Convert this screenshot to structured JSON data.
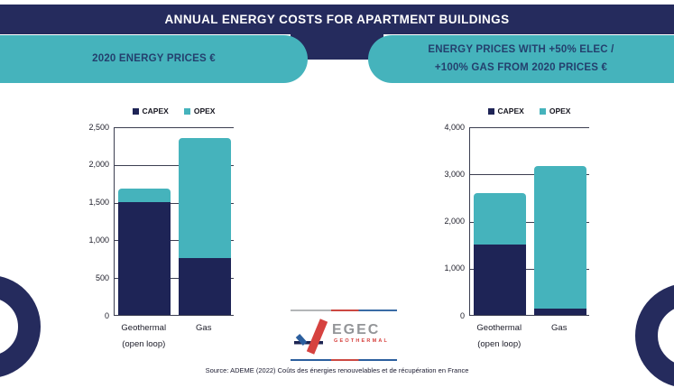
{
  "header": {
    "title": "ANNUAL ENERGY COSTS FOR APARTMENT BUILDINGS"
  },
  "banners": {
    "left": "2020 ENERGY PRICES €",
    "right_line1": "ENERGY PRICES WITH +50% ELEC /",
    "right_line2": "+100% GAS FROM 2020 PRICES €"
  },
  "chart_data": [
    {
      "type": "bar",
      "stacked": true,
      "title": "2020 ENERGY PRICES €",
      "categories": [
        [
          "Geothermal",
          "(open loop)"
        ],
        [
          "Gas"
        ]
      ],
      "series": [
        {
          "name": "CAPEX",
          "values": [
            1500,
            750
          ]
        },
        {
          "name": "OPEX",
          "values": [
            180,
            1600
          ]
        }
      ],
      "totals": [
        1680,
        2350
      ],
      "ylim": [
        0,
        2500
      ],
      "yticks": [
        "0",
        "500",
        "1,000",
        "1,500",
        "2,000",
        "2,500"
      ],
      "grid": true,
      "legend_position": "top"
    },
    {
      "type": "bar",
      "stacked": true,
      "title": "ENERGY PRICES WITH +50% ELEC / +100% GAS FROM 2020 PRICES €",
      "categories": [
        [
          "Geothermal",
          "(open loop)"
        ],
        [
          "Gas"
        ]
      ],
      "series": [
        {
          "name": "CAPEX",
          "values": [
            1500,
            140
          ]
        },
        {
          "name": "OPEX",
          "values": [
            1080,
            3010
          ]
        }
      ],
      "totals": [
        2580,
        3150
      ],
      "ylim": [
        0,
        4000
      ],
      "yticks": [
        "0",
        "1,000",
        "2,000",
        "3,000",
        "4,000"
      ],
      "grid": true,
      "legend_position": "top"
    }
  ],
  "logo": {
    "name": "EGEC",
    "subtitle": "GEOTHERMAL"
  },
  "source": "Source: ADEME (2022) Coûts des énergies renouvelables et de récupération en France",
  "colors": {
    "navy": "#252b5d",
    "teal": "#45b3bc",
    "capex": "#1e2456",
    "opex": "#45b3bc",
    "banner_text": "#24406e",
    "gridline": "#3c3f51",
    "logo_red": "#d6423f",
    "logo_blue": "#2c5f9e",
    "logo_gray": "#939598"
  }
}
